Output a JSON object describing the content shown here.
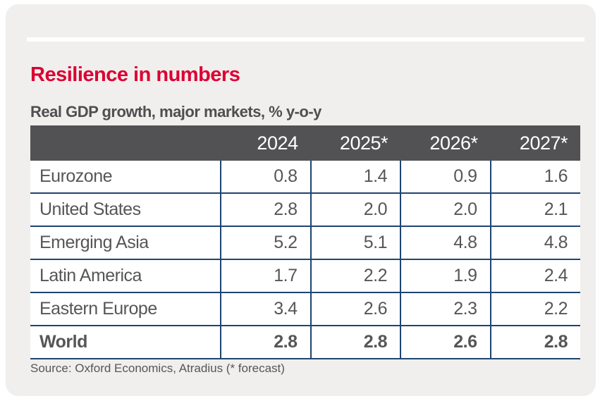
{
  "header": {
    "title": "Resilience in numbers",
    "subtitle": "Real GDP growth, major markets, % y-o-y"
  },
  "table": {
    "columns": [
      "2024",
      "2025*",
      "2026*",
      "2027*"
    ],
    "rows": [
      {
        "label": "Eurozone",
        "values": [
          "0.8",
          "1.4",
          "0.9",
          "1.6"
        ]
      },
      {
        "label": "United States",
        "values": [
          "2.8",
          "2.0",
          "2.0",
          "2.1"
        ]
      },
      {
        "label": "Emerging Asia",
        "values": [
          "5.2",
          "5.1",
          "4.8",
          "4.8"
        ]
      },
      {
        "label": "Latin America",
        "values": [
          "1.7",
          "2.2",
          "1.9",
          "2.4"
        ]
      },
      {
        "label": "Eastern Europe",
        "values": [
          "3.4",
          "2.6",
          "2.3",
          "2.2"
        ]
      },
      {
        "label": "World",
        "values": [
          "2.8",
          "2.8",
          "2.6",
          "2.8"
        ]
      }
    ]
  },
  "source": "Source: Oxford Economics, Atradius (* forecast)",
  "colors": {
    "accent_red": "#dc0032",
    "header_bg": "#525254",
    "border_navy": "#1e4472",
    "card_bg": "#f0efed",
    "text_gray": "#565659"
  },
  "chart_data": {
    "type": "table",
    "title": "Resilience in numbers",
    "subtitle": "Real GDP growth, major markets, % y-o-y",
    "categories": [
      "2024",
      "2025*",
      "2026*",
      "2027*"
    ],
    "series": [
      {
        "name": "Eurozone",
        "values": [
          0.8,
          1.4,
          0.9,
          1.6
        ]
      },
      {
        "name": "United States",
        "values": [
          2.8,
          2.0,
          2.0,
          2.1
        ]
      },
      {
        "name": "Emerging Asia",
        "values": [
          5.2,
          5.1,
          4.8,
          4.8
        ]
      },
      {
        "name": "Latin America",
        "values": [
          1.7,
          2.2,
          1.9,
          2.4
        ]
      },
      {
        "name": "Eastern Europe",
        "values": [
          3.4,
          2.6,
          2.3,
          2.2
        ]
      },
      {
        "name": "World",
        "values": [
          2.8,
          2.8,
          2.6,
          2.8
        ]
      }
    ],
    "source": "Source: Oxford Economics, Atradius (* forecast)",
    "layout_hints": {
      "bold_rows": [
        "World"
      ],
      "values_unit": "% y-o-y",
      "forecast_marker": "*"
    }
  }
}
